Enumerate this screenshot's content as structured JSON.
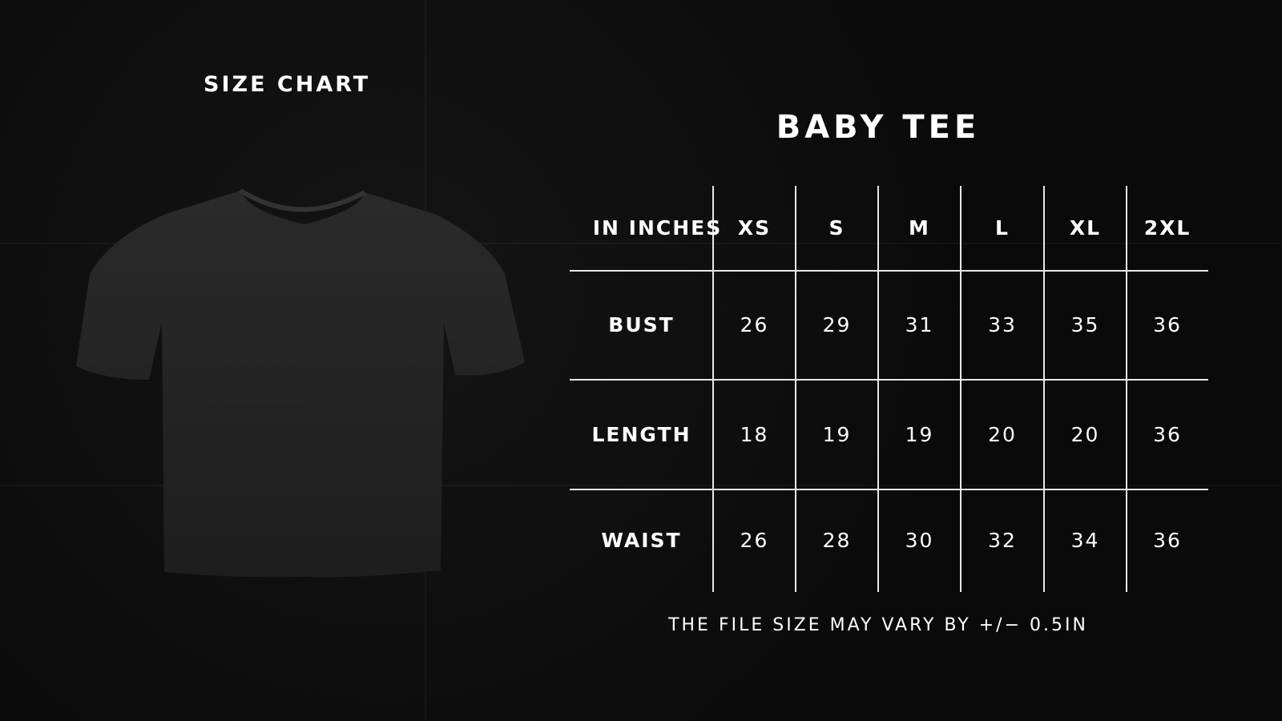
{
  "header": {
    "size_chart_label": "SIZE CHART",
    "product_title": "BABY TEE"
  },
  "table": {
    "corner_label": "IN INCHES",
    "sizes": [
      "XS",
      "S",
      "M",
      "L",
      "XL",
      "2XL"
    ],
    "rows": [
      {
        "label": "BUST",
        "values": [
          "26",
          "29",
          "31",
          "33",
          "35",
          "36"
        ]
      },
      {
        "label": "LENGTH",
        "values": [
          "18",
          "19",
          "19",
          "20",
          "20",
          "36"
        ]
      },
      {
        "label": "WAIST",
        "values": [
          "26",
          "28",
          "30",
          "32",
          "34",
          "36"
        ]
      }
    ]
  },
  "footer": {
    "note": "THE FILE SIZE MAY VARY BY +/− 0.5IN"
  },
  "colors": {
    "background": "#0b0b0b",
    "text": "#ffffff",
    "tee": "#262626"
  }
}
